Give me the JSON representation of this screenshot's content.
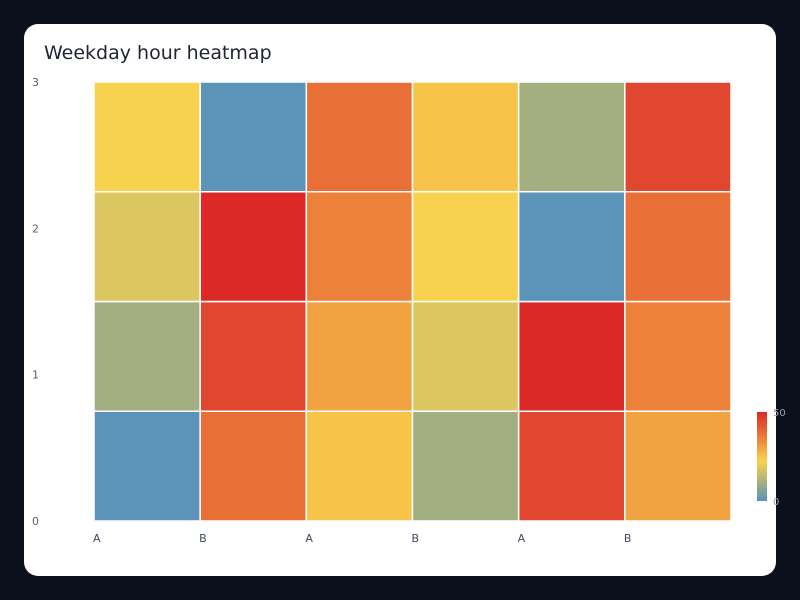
{
  "chart_data": {
    "type": "heatmap",
    "title": "Weekday hour heatmap",
    "x_tick_labels": [
      "A",
      "B",
      "A",
      "B",
      "A",
      "B"
    ],
    "y_tick_labels": [
      "0",
      "1",
      "2",
      "3"
    ],
    "rows_bottom_to_top": [
      [
        0,
        38,
        25,
        10,
        45,
        30
      ],
      [
        10,
        45,
        30,
        18,
        50,
        35
      ],
      [
        18,
        50,
        35,
        22,
        0,
        38
      ],
      [
        22,
        0,
        38,
        25,
        10,
        45
      ]
    ],
    "colorscale": {
      "min": 0,
      "max": 50,
      "tick_labels": [
        "0",
        "50"
      ],
      "colors": [
        "#5b93b9",
        "#83a298",
        "#abb27a",
        "#d3c265",
        "#fad24d",
        "#f4b345",
        "#ef8b3b",
        "#e76a35",
        "#e14a2f",
        "#dc2927"
      ]
    }
  }
}
